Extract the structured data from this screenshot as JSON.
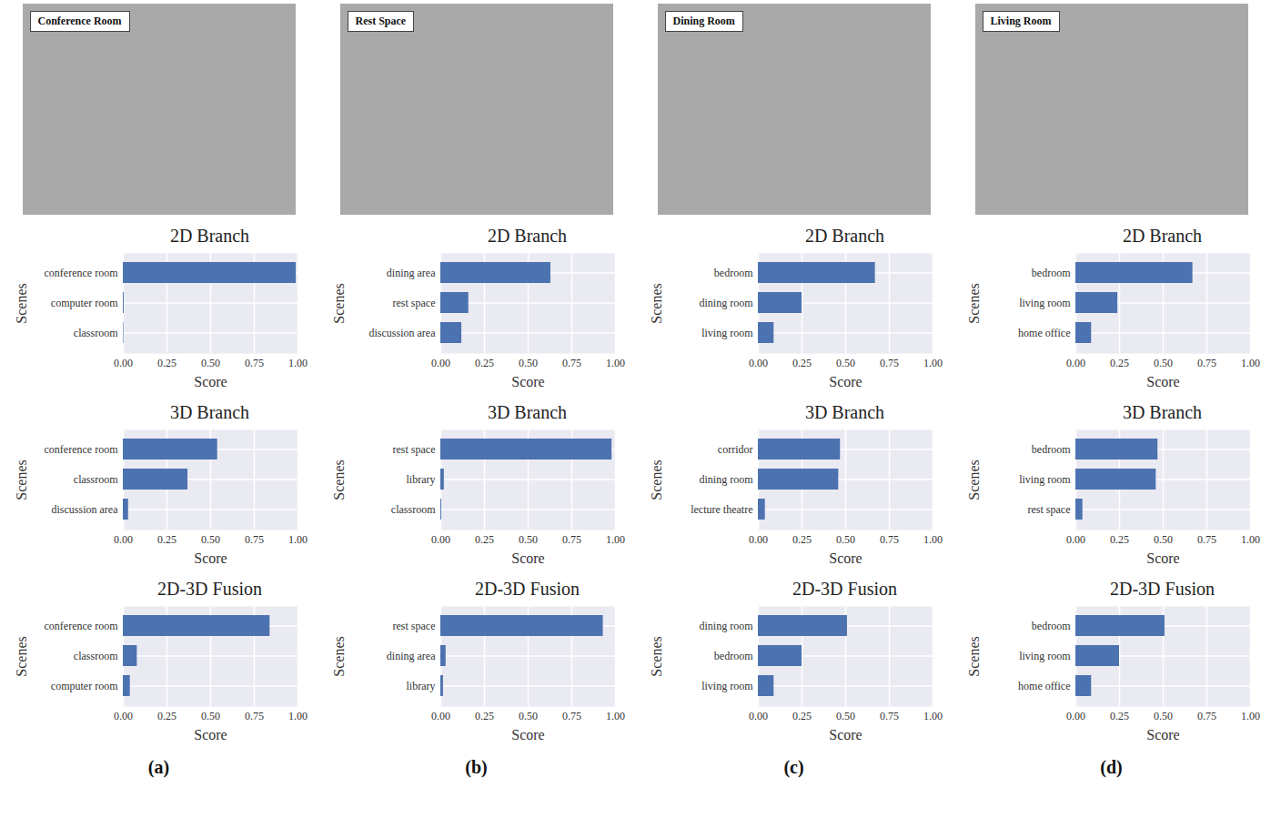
{
  "chart_data": [
    {
      "type": "bar",
      "orientation": "horizontal",
      "title": "2D Branch",
      "xlabel": "Score",
      "ylabel": "Scenes",
      "categories": [
        "conference room",
        "computer room",
        "classroom"
      ],
      "values": [
        0.99,
        0.005,
        0.003
      ],
      "color": "#4c72b0",
      "xlim": [
        0,
        1
      ],
      "xticks": [
        {
          "value": 0,
          "label": "0.00"
        },
        0.25,
        {
          "value": 0.5,
          "label": "0.50"
        },
        0.75,
        {
          "value": 1,
          "label": "1.00"
        }
      ],
      "grid": true
    },
    {
      "type": "bar",
      "orientation": "horizontal",
      "title": "3D Branch",
      "xlabel": "Score",
      "ylabel": "Scenes",
      "categories": [
        "conference room",
        "classroom",
        "discussion area"
      ],
      "values": [
        0.54,
        0.37,
        0.03
      ],
      "color": "#4c72b0",
      "xlim": [
        0,
        1
      ],
      "xticks": [
        {
          "value": 0,
          "label": "0.00"
        },
        0.25,
        {
          "value": 0.5,
          "label": "0.50"
        },
        0.75,
        {
          "value": 1,
          "label": "1.00"
        }
      ],
      "grid": true
    },
    {
      "type": "bar",
      "orientation": "horizontal",
      "title": "2D-3D Fusion",
      "xlabel": "Score",
      "ylabel": "Scenes",
      "categories": [
        "conference room",
        "classroom",
        "computer room"
      ],
      "values": [
        0.84,
        0.08,
        0.04
      ],
      "color": "#4c72b0",
      "xlim": [
        0,
        1
      ],
      "xticks": [
        {
          "value": 0,
          "label": "0.00"
        },
        0.25,
        {
          "value": 0.5,
          "label": "0.50"
        },
        0.75,
        {
          "value": 1,
          "label": "1.00"
        }
      ],
      "grid": true
    },
    {
      "type": "bar",
      "orientation": "horizontal",
      "title": "2D Branch",
      "xlabel": "Score",
      "ylabel": "Scenes",
      "categories": [
        "dining area",
        "rest space",
        "discussion area"
      ],
      "values": [
        0.63,
        0.16,
        0.12
      ],
      "color": "#4c72b0",
      "xlim": [
        0,
        1
      ],
      "xticks": [
        {
          "value": 0,
          "label": "0.00"
        },
        0.25,
        {
          "value": 0.5,
          "label": "0.50"
        },
        0.75,
        {
          "value": 1,
          "label": "1.00"
        }
      ],
      "grid": true
    },
    {
      "type": "bar",
      "orientation": "horizontal",
      "title": "3D Branch",
      "xlabel": "Score",
      "ylabel": "Scenes",
      "categories": [
        "rest space",
        "library",
        "classroom"
      ],
      "values": [
        0.98,
        0.02,
        0.005
      ],
      "color": "#4c72b0",
      "xlim": [
        0,
        1
      ],
      "xticks": [
        {
          "value": 0,
          "label": "0.00"
        },
        0.25,
        {
          "value": 0.5,
          "label": "0.50"
        },
        0.75,
        {
          "value": 1,
          "label": "1.00"
        }
      ],
      "grid": true
    },
    {
      "type": "bar",
      "orientation": "horizontal",
      "title": "2D-3D Fusion",
      "xlabel": "Score",
      "ylabel": "Scenes",
      "categories": [
        "rest space",
        "dining area",
        "library"
      ],
      "values": [
        0.93,
        0.03,
        0.015
      ],
      "color": "#4c72b0",
      "xlim": [
        0,
        1
      ],
      "xticks": [
        {
          "value": 0,
          "label": "0.00"
        },
        0.25,
        {
          "value": 0.5,
          "label": "0.50"
        },
        0.75,
        {
          "value": 1,
          "label": "1.00"
        }
      ],
      "grid": true
    },
    {
      "type": "bar",
      "orientation": "horizontal",
      "title": "2D Branch",
      "xlabel": "Score",
      "ylabel": "Scenes",
      "categories": [
        "bedroom",
        "dining room",
        "living room"
      ],
      "values": [
        0.67,
        0.25,
        0.09
      ],
      "color": "#4c72b0",
      "xlim": [
        0,
        1
      ],
      "xticks": [
        {
          "value": 0,
          "label": "0.00"
        },
        0.25,
        {
          "value": 0.5,
          "label": "0.50"
        },
        0.75,
        {
          "value": 1,
          "label": "1.00"
        }
      ],
      "grid": true
    },
    {
      "type": "bar",
      "orientation": "horizontal",
      "title": "3D Branch",
      "xlabel": "Score",
      "ylabel": "Scenes",
      "categories": [
        "corridor",
        "dining room",
        "lecture theatre"
      ],
      "values": [
        0.47,
        0.46,
        0.04
      ],
      "color": "#4c72b0",
      "xlim": [
        0,
        1
      ],
      "xticks": [
        {
          "value": 0,
          "label": "0.00"
        },
        0.25,
        {
          "value": 0.5,
          "label": "0.50"
        },
        0.75,
        {
          "value": 1,
          "label": "1.00"
        }
      ],
      "grid": true
    },
    {
      "type": "bar",
      "orientation": "horizontal",
      "title": "2D-3D Fusion",
      "xlabel": "Score",
      "ylabel": "Scenes",
      "categories": [
        "dining room",
        "bedroom",
        "living room"
      ],
      "values": [
        0.51,
        0.25,
        0.09
      ],
      "color": "#4c72b0",
      "xlim": [
        0,
        1
      ],
      "xticks": [
        {
          "value": 0,
          "label": "0.00"
        },
        0.25,
        {
          "value": 0.5,
          "label": "0.50"
        },
        0.75,
        {
          "value": 1,
          "label": "1.00"
        }
      ],
      "grid": true
    },
    {
      "type": "bar",
      "orientation": "horizontal",
      "title": "2D Branch",
      "xlabel": "Score",
      "ylabel": "Scenes",
      "categories": [
        "bedroom",
        "living room",
        "home office"
      ],
      "values": [
        0.67,
        0.24,
        0.09
      ],
      "color": "#4c72b0",
      "xlim": [
        0,
        1
      ],
      "xticks": [
        {
          "value": 0,
          "label": "0.00"
        },
        0.25,
        {
          "value": 0.5,
          "label": "0.50"
        },
        0.75,
        {
          "value": 1,
          "label": "1.00"
        }
      ],
      "grid": true
    },
    {
      "type": "bar",
      "orientation": "horizontal",
      "title": "3D Branch",
      "xlabel": "Score",
      "ylabel": "Scenes",
      "categories": [
        "bedroom",
        "living room",
        "rest space"
      ],
      "values": [
        0.47,
        0.46,
        0.04
      ],
      "color": "#4c72b0",
      "xlim": [
        0,
        1
      ],
      "xticks": [
        {
          "value": 0,
          "label": "0.00"
        },
        0.25,
        {
          "value": 0.5,
          "label": "0.50"
        },
        0.75,
        {
          "value": 1,
          "label": "1.00"
        }
      ],
      "grid": true
    },
    {
      "type": "bar",
      "orientation": "horizontal",
      "title": "2D-3D Fusion",
      "xlabel": "Score",
      "ylabel": "Scenes",
      "categories": [
        "bedroom",
        "living room",
        "home office"
      ],
      "values": [
        0.51,
        0.25,
        0.09
      ],
      "color": "#4c72b0",
      "xlim": [
        0,
        1
      ],
      "xticks": [
        {
          "value": 0,
          "label": "0.00"
        },
        0.25,
        {
          "value": 0.5,
          "label": "0.50"
        },
        0.75,
        {
          "value": 1,
          "label": "1.00"
        }
      ],
      "grid": true
    }
  ],
  "panels": [
    {
      "label": "(a)",
      "photo_label": "Conference Room"
    },
    {
      "label": "(b)",
      "photo_label": "Rest Space"
    },
    {
      "label": "(c)",
      "photo_label": "Dining Room"
    },
    {
      "label": "(d)",
      "photo_label": "Living Room"
    }
  ]
}
